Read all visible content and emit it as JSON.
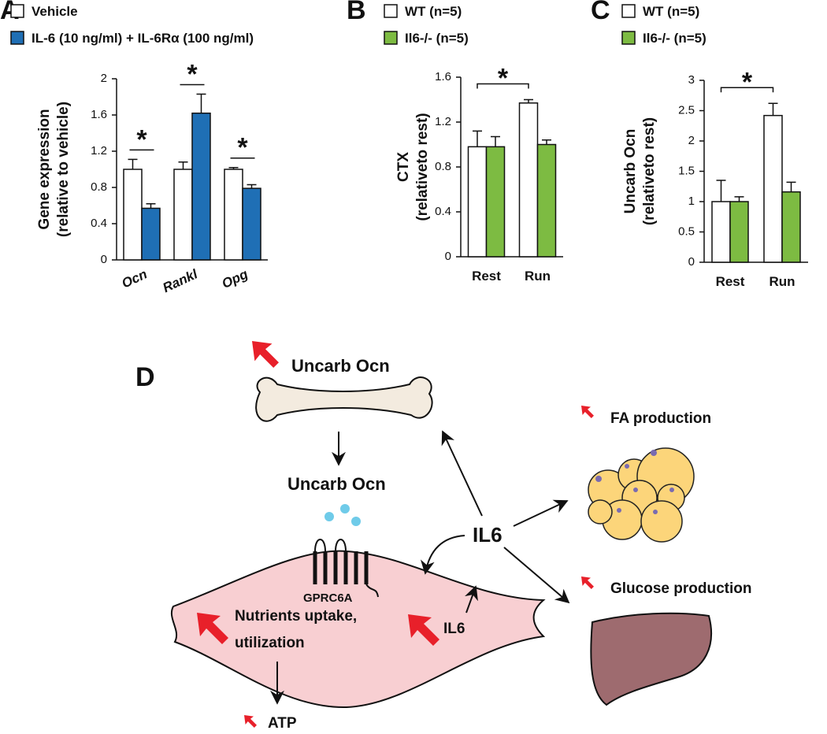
{
  "chart_data": [
    {
      "type": "bar",
      "panel_label": "A",
      "ylabel": [
        "Gene expression",
        "(relative to vehicle)"
      ],
      "categories": [
        "Ocn",
        "Rankl",
        "Opg"
      ],
      "series": [
        {
          "name": "Vehicle",
          "color": "#ffffff",
          "values": [
            1.0,
            1.0,
            1.0
          ],
          "errors": [
            0.11,
            0.08,
            0.02
          ]
        },
        {
          "name": "IL-6 (10 ng/ml) + IL-6Rα (100 ng/ml)",
          "color": "#1f6fb5",
          "values": [
            0.57,
            1.62,
            0.79
          ],
          "errors": [
            0.05,
            0.21,
            0.04
          ]
        }
      ],
      "ylim": [
        0,
        2
      ],
      "yticks": [
        0,
        0.4,
        0.8,
        1.2,
        1.6,
        2
      ],
      "annotations": [
        "*",
        "*",
        "*"
      ]
    },
    {
      "type": "bar",
      "panel_label": "B",
      "ylabel": [
        "CTX",
        "(relativeto rest)"
      ],
      "categories": [
        "Rest",
        "Run"
      ],
      "series": [
        {
          "name": "WT (n=5)",
          "color": "#ffffff",
          "values": [
            0.98,
            1.37
          ],
          "errors": [
            0.14,
            0.03
          ]
        },
        {
          "name": "Il6-/- (n=5)",
          "color": "#7dbb42",
          "values": [
            0.98,
            1.0
          ],
          "errors": [
            0.09,
            0.04
          ]
        }
      ],
      "ylim": [
        0,
        1.6
      ],
      "yticks": [
        0,
        0.4,
        0.8,
        1.2,
        1.6
      ],
      "annotations": [
        "*"
      ]
    },
    {
      "type": "bar",
      "panel_label": "C",
      "ylabel": [
        "Uncarb Ocn",
        "(relativeto rest)"
      ],
      "categories": [
        "Rest",
        "Run"
      ],
      "series": [
        {
          "name": "WT (n=5)",
          "color": "#ffffff",
          "values": [
            1.0,
            2.42
          ],
          "errors": [
            0.35,
            0.2
          ]
        },
        {
          "name": "Il6-/- (n=5)",
          "color": "#7dbb42",
          "values": [
            1.0,
            1.16
          ],
          "errors": [
            0.08,
            0.16
          ]
        }
      ],
      "ylim": [
        0,
        3
      ],
      "yticks": [
        0,
        0.5,
        1,
        1.5,
        2,
        2.5,
        3
      ],
      "annotations": [
        "*"
      ]
    }
  ],
  "diagram": {
    "panel_label": "D",
    "bone_label": "Uncarb Ocn",
    "secreted_label": "Uncarb Ocn",
    "receptor": "GPRC6A",
    "muscle_effect": [
      "Nutrients uptake,",
      "utilization"
    ],
    "muscle_il6": "IL6",
    "cytokine": "IL6",
    "fat_effect": "FA production",
    "liver_effect": "Glucose production",
    "atp": "ATP"
  }
}
